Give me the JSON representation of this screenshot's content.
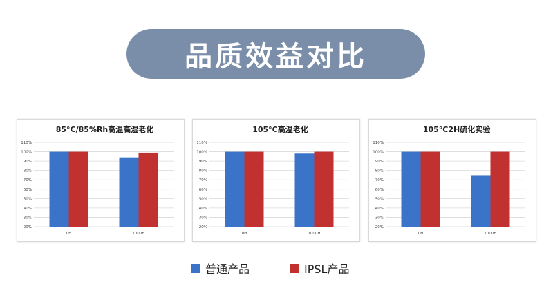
{
  "page_title": "品质效益对比",
  "colors": {
    "title_bg": "#7a8eaa",
    "series_ordinary": "#3a73c8",
    "series_ipsl": "#c1312f"
  },
  "legend": [
    {
      "name": "普通产品",
      "color": "#3a73c8"
    },
    {
      "name": "IPSL产品",
      "color": "#c1312f"
    }
  ],
  "chart_data": [
    {
      "type": "bar",
      "title": "85°C/85%Rh高温高湿老化",
      "categories": [
        "0H",
        "1000H"
      ],
      "series": [
        {
          "name": "普通产品",
          "values": [
            100,
            94
          ]
        },
        {
          "name": "IPSL产品",
          "values": [
            100,
            99
          ]
        }
      ],
      "yticks": [
        "20%",
        "30%",
        "40%",
        "50%",
        "60%",
        "70%",
        "80%",
        "90%",
        "100%",
        "110%"
      ],
      "ylim": [
        20,
        110
      ],
      "grid": true
    },
    {
      "type": "bar",
      "title": "105°C高温老化",
      "categories": [
        "0H",
        "1000H"
      ],
      "series": [
        {
          "name": "普通产品",
          "values": [
            100,
            98
          ]
        },
        {
          "name": "IPSL产品",
          "values": [
            100,
            100
          ]
        }
      ],
      "yticks": [
        "20%",
        "30%",
        "40%",
        "50%",
        "60%",
        "70%",
        "80%",
        "90%",
        "100%",
        "110%"
      ],
      "ylim": [
        20,
        110
      ],
      "grid": true
    },
    {
      "type": "bar",
      "title": "105°C2H硫化实验",
      "categories": [
        "0H",
        "1000H"
      ],
      "series": [
        {
          "name": "普通产品",
          "values": [
            100,
            75
          ]
        },
        {
          "name": "IPSL产品",
          "values": [
            100,
            100
          ]
        }
      ],
      "yticks": [
        "20%",
        "30%",
        "40%",
        "50%",
        "60%",
        "70%",
        "80%",
        "90%",
        "100%",
        "110%"
      ],
      "ylim": [
        20,
        110
      ],
      "grid": true
    }
  ]
}
